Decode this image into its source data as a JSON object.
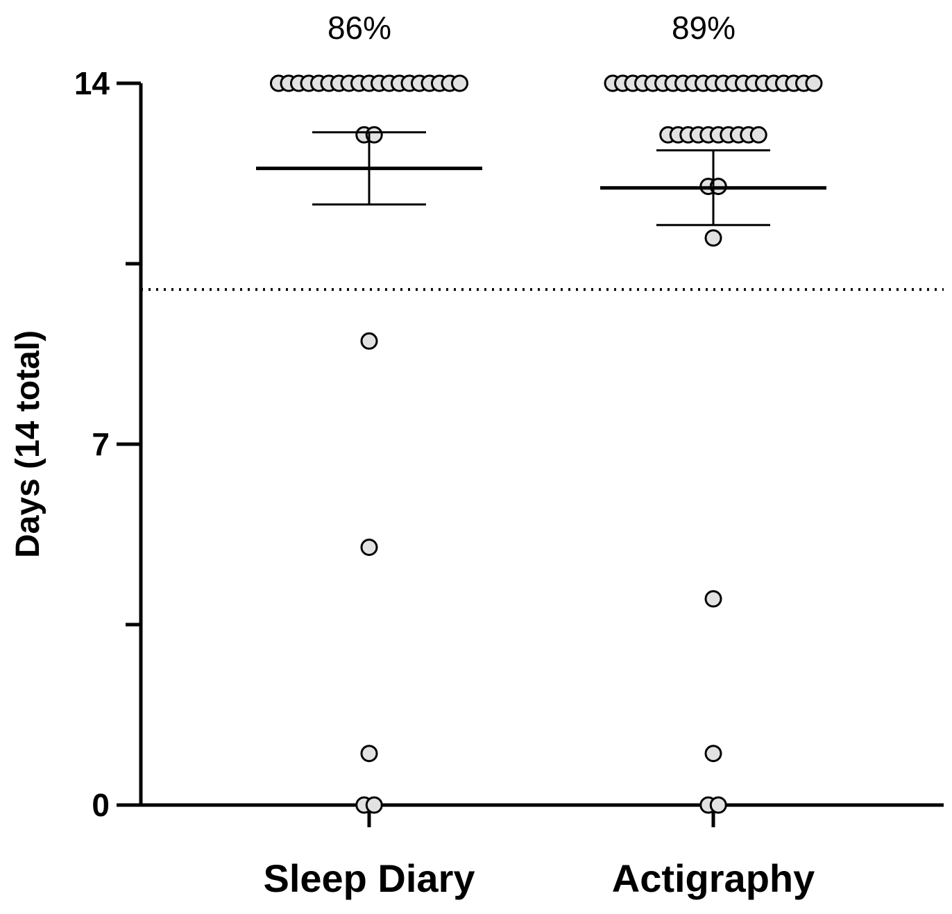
{
  "chart_data": {
    "type": "scatter",
    "ylabel": "Days (14 total)",
    "yticks": [
      {
        "value": 14,
        "label": "14"
      },
      {
        "value": 7,
        "label": "7"
      },
      {
        "value": 0,
        "label": "0"
      }
    ],
    "yminor": [
      3.5,
      10.5
    ],
    "ylim": [
      0,
      14
    ],
    "threshold": 10,
    "categories": [
      {
        "label": "Sleep Diary",
        "percent": "86%",
        "mean": 12.35,
        "sd_upper": 13.05,
        "sd_lower": 11.65,
        "points": [
          {
            "value": 14,
            "count": 19
          },
          {
            "value": 13,
            "count": 2
          },
          {
            "value": 9,
            "count": 1
          },
          {
            "value": 5,
            "count": 1
          },
          {
            "value": 1,
            "count": 1
          },
          {
            "value": 0,
            "count": 2
          }
        ]
      },
      {
        "label": "Actigraphy",
        "percent": "89%",
        "mean": 11.97,
        "sd_upper": 12.7,
        "sd_lower": 11.25,
        "points": [
          {
            "value": 14,
            "count": 21
          },
          {
            "value": 13,
            "count": 10
          },
          {
            "value": 12,
            "count": 2
          },
          {
            "value": 11,
            "count": 1
          },
          {
            "value": 4,
            "count": 1
          },
          {
            "value": 1,
            "count": 1
          },
          {
            "value": 0,
            "count": 2
          }
        ]
      }
    ]
  }
}
